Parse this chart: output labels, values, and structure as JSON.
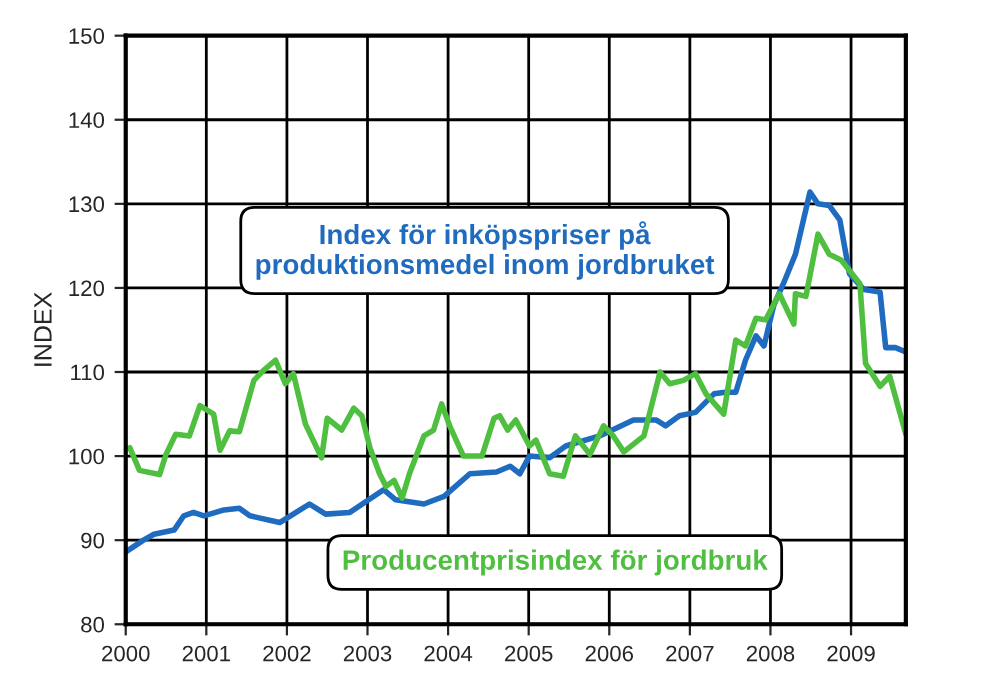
{
  "chart_data": {
    "type": "line",
    "ylabel": "INDEX",
    "xlim": [
      2000,
      2009.68
    ],
    "xticks": [
      2000,
      2001,
      2002,
      2003,
      2004,
      2005,
      2006,
      2007,
      2008,
      2009
    ],
    "ylim": [
      80,
      150
    ],
    "yticks": [
      80,
      90,
      100,
      110,
      120,
      130,
      140,
      150
    ],
    "grid": true,
    "legend": false,
    "marker": "none",
    "line_style": "solid",
    "series": [
      {
        "name": "Index för inköpspriser på produktionsmedel inom jordbruket",
        "color": "#1f6bbf",
        "x": [
          2000,
          2000.22,
          2000.35,
          2000.6,
          2000.72,
          2000.84,
          2000.97,
          2001.22,
          2001.41,
          2001.54,
          2001.91,
          2002.28,
          2002.48,
          2002.78,
          2003.2,
          2003.35,
          2003.7,
          2003.95,
          2004.27,
          2004.6,
          2004.77,
          2004.89,
          2005.01,
          2005.26,
          2005.46,
          2005.88,
          2006.3,
          2006.58,
          2006.7,
          2006.87,
          2007.07,
          2007.3,
          2007.44,
          2007.57,
          2007.69,
          2007.82,
          2007.92,
          2008.04,
          2008.16,
          2008.31,
          2008.49,
          2008.59,
          2008.73,
          2008.86,
          2008.98,
          2009.16,
          2009.36,
          2009.43,
          2009.55,
          2009.68
        ],
        "values": [
          88.6,
          90,
          90.7,
          91.2,
          92.9,
          93.3,
          92.9,
          93.6,
          93.8,
          92.9,
          92.1,
          94.3,
          93.1,
          93.3,
          96,
          94.8,
          94.3,
          95.2,
          97.9,
          98.1,
          98.8,
          97.9,
          100,
          99.8,
          101.2,
          102.4,
          104.3,
          104.3,
          103.6,
          104.8,
          105.2,
          107.4,
          107.6,
          107.6,
          111.4,
          114.3,
          113.1,
          117.9,
          120.5,
          124,
          131.4,
          130,
          129.8,
          128.1,
          121.7,
          119.8,
          119.5,
          112.9,
          112.9,
          112.4
        ]
      },
      {
        "name": "Producentprisindex för jordbruk",
        "color": "#4fbf3f",
        "x": [
          2000.05,
          2000.17,
          2000.42,
          2000.5,
          2000.62,
          2000.79,
          2000.92,
          2001.09,
          2001.17,
          2001.29,
          2001.41,
          2001.59,
          2001.71,
          2001.86,
          2001.98,
          2002.08,
          2002.23,
          2002.43,
          2002.5,
          2002.68,
          2002.83,
          2002.93,
          2003.03,
          2003.15,
          2003.23,
          2003.33,
          2003.43,
          2003.52,
          2003.7,
          2003.82,
          2003.92,
          2004.02,
          2004.19,
          2004.42,
          2004.57,
          2004.64,
          2004.74,
          2004.84,
          2005.01,
          2005.09,
          2005.26,
          2005.43,
          2005.58,
          2005.76,
          2005.93,
          2006.05,
          2006.18,
          2006.43,
          2006.63,
          2006.75,
          2006.92,
          2007.07,
          2007.2,
          2007.42,
          2007.57,
          2007.69,
          2007.82,
          2007.94,
          2008.11,
          2008.29,
          2008.31,
          2008.44,
          2008.59,
          2008.73,
          2008.88,
          2009.11,
          2009.18,
          2009.36,
          2009.48,
          2009.68
        ],
        "values": [
          101,
          98.3,
          97.8,
          100.2,
          102.6,
          102.4,
          106,
          105,
          100.7,
          103,
          102.9,
          109,
          110.2,
          111.4,
          108.6,
          109.8,
          103.8,
          99.8,
          104.5,
          103.1,
          105.7,
          104.8,
          101,
          97.9,
          96.4,
          97.1,
          95,
          97.9,
          102.4,
          103.1,
          106.2,
          103.6,
          100,
          100,
          104.5,
          104.8,
          103.1,
          104.3,
          101.2,
          101.9,
          97.9,
          97.6,
          102.4,
          100.2,
          103.6,
          102.4,
          100.5,
          102.4,
          110,
          108.6,
          109,
          109.8,
          107.4,
          105,
          113.8,
          113.1,
          116.4,
          116.2,
          119.3,
          115.7,
          119.3,
          119,
          126.4,
          124,
          123.3,
          120.5,
          111,
          108.3,
          109.5,
          102.6
        ]
      }
    ]
  }
}
